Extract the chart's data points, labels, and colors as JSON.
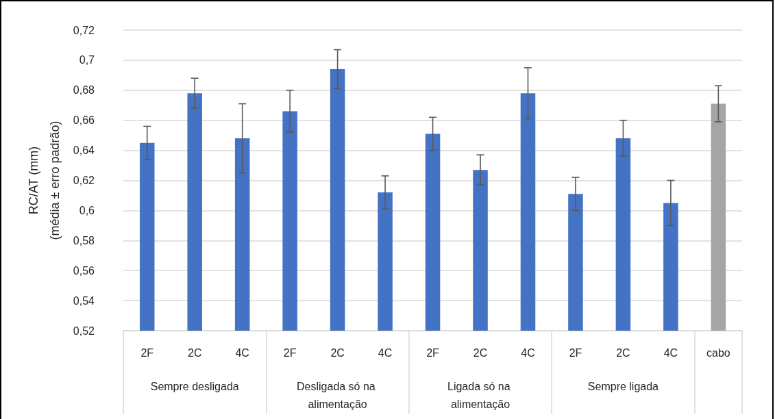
{
  "chart_data": {
    "type": "bar",
    "ylabel": "RC/AT (mm)\n(média ± erro padrão)",
    "categories": [
      "2F",
      "2C",
      "4C",
      "2F",
      "2C",
      "4C",
      "2F",
      "2C",
      "4C",
      "2F",
      "2C",
      "4C",
      "cabo"
    ],
    "values": [
      0.645,
      0.678,
      0.648,
      0.666,
      0.694,
      0.612,
      0.651,
      0.627,
      0.678,
      0.611,
      0.648,
      0.605,
      0.671
    ],
    "errors": [
      0.011,
      0.01,
      0.023,
      0.014,
      0.013,
      0.011,
      0.011,
      0.01,
      0.017,
      0.011,
      0.012,
      0.015,
      0.012
    ],
    "colors": [
      "#4472c4",
      "#4472c4",
      "#4472c4",
      "#4472c4",
      "#4472c4",
      "#4472c4",
      "#4472c4",
      "#4472c4",
      "#4472c4",
      "#4472c4",
      "#4472c4",
      "#4472c4",
      "#a5a5a5"
    ],
    "ylim": [
      0.52,
      0.72
    ],
    "yticks": [
      {
        "value": 0.52,
        "label": "0,52"
      },
      {
        "value": 0.54,
        "label": "0,54"
      },
      {
        "value": 0.56,
        "label": "0,56"
      },
      {
        "value": 0.58,
        "label": "0,58"
      },
      {
        "value": 0.6,
        "label": "0,6"
      },
      {
        "value": 0.62,
        "label": "0,62"
      },
      {
        "value": 0.64,
        "label": "0,64"
      },
      {
        "value": 0.66,
        "label": "0,66"
      },
      {
        "value": 0.68,
        "label": "0,68"
      },
      {
        "value": 0.7,
        "label": "0,7"
      },
      {
        "value": 0.72,
        "label": "0,72"
      }
    ],
    "grid": "y",
    "annotations": [
      "Sempre desligada",
      "Desligada só na alimentação",
      "Ligada só na alimentação",
      "Sempre ligada"
    ]
  }
}
